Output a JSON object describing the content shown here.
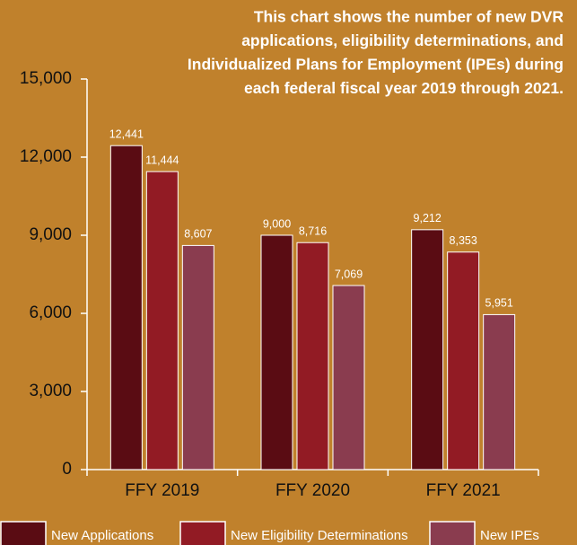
{
  "chart_data": {
    "type": "bar",
    "title": [
      "This chart shows the number of new DVR",
      "applications, eligibility determinations, and",
      "Individualized Plans for Employment (IPEs) during",
      "each federal fiscal year 2019 through 2021."
    ],
    "categories": [
      "FFY 2019",
      "FFY 2020",
      "FFY 2021"
    ],
    "series": [
      {
        "name": "New Applications",
        "color": "#5a0c13",
        "values": [
          12441,
          9000,
          9212
        ],
        "value_labels": [
          "12,441",
          "9,000",
          "9,212"
        ]
      },
      {
        "name": "New Eligibility Determinations",
        "color": "#921b24",
        "values": [
          11444,
          8716,
          8353
        ],
        "value_labels": [
          "11,444",
          "8,716",
          "8,353"
        ]
      },
      {
        "name": "New IPEs",
        "color": "#8a3c4f",
        "values": [
          8607,
          7069,
          5951
        ],
        "value_labels": [
          "8,607",
          "7,069",
          "5,951"
        ]
      }
    ],
    "ylim": [
      0,
      15000
    ],
    "yticks": [
      0,
      {
        "value": 3000,
        "label": "3,000"
      },
      {
        "value": 6000,
        "label": "6,000"
      },
      {
        "value": 9000,
        "label": "9,000"
      },
      {
        "value": 12000,
        "label": "12,000"
      },
      {
        "value": 15000,
        "label": "15,000"
      }
    ],
    "grid": false,
    "legend": "bottom"
  }
}
